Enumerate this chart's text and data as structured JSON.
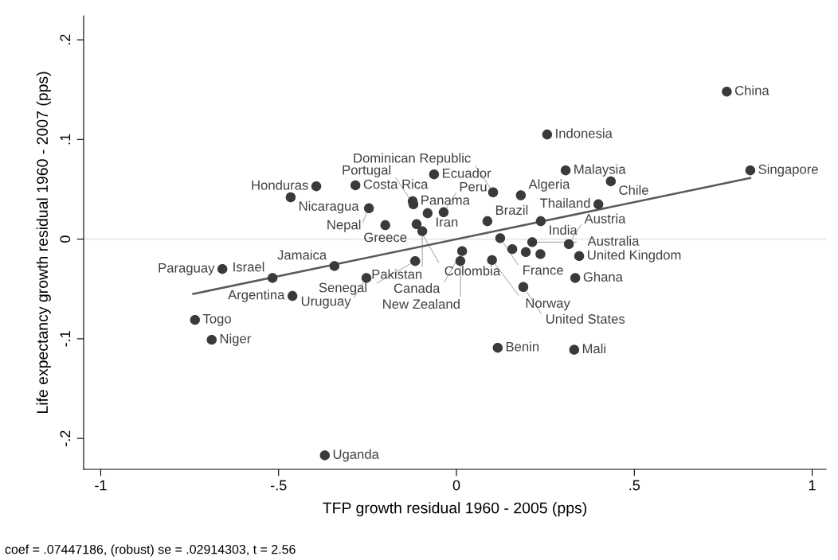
{
  "chart_data": {
    "type": "scatter",
    "xlabel": "TFP growth residual 1960 - 2005 (pps)",
    "ylabel": "Life expectancy growth residual 1960 - 2007 (pps)",
    "xlim": [
      -1.048,
      1.039
    ],
    "ylim": [
      -0.231,
      0.224
    ],
    "xticks": [
      {
        "value": -1,
        "label": "-1"
      },
      {
        "value": -0.5,
        "label": "-.5"
      },
      {
        "value": 0,
        "label": "0"
      },
      {
        "value": 0.5,
        "label": ".5"
      },
      {
        "value": 1,
        "label": "1"
      }
    ],
    "yticks": [
      {
        "value": -0.2,
        "label": "-.2"
      },
      {
        "value": -0.1,
        "label": "-.1"
      },
      {
        "value": 0,
        "label": "0"
      },
      {
        "value": 0.1,
        "label": ".1"
      },
      {
        "value": 0.2,
        "label": ".2"
      }
    ],
    "marker": "circle",
    "ref_lines": [
      {
        "axis": "y",
        "value": 0,
        "color": "#e6e6e6"
      }
    ],
    "series": [
      {
        "color": "#3a3a3a",
        "x": [
          0.76,
          0.826,
          0.255,
          0.307,
          0.434,
          0.399,
          0.103,
          0.181,
          0.237,
          0.087,
          -0.063,
          -0.284,
          -0.394,
          -0.466,
          -0.246,
          -0.123,
          -0.121,
          -0.081,
          -0.036,
          -0.2,
          -0.112,
          -0.096,
          0.123,
          0.213,
          0.316,
          0.016,
          0.1,
          0.157,
          0.195,
          0.236,
          0.345,
          0.011,
          -0.116,
          0.188,
          0.334,
          0.116,
          0.331,
          -0.37,
          -0.735,
          -0.688,
          -0.658,
          -0.517,
          -0.461,
          -0.343,
          -0.253
        ],
        "values": [
          0.148,
          0.069,
          0.105,
          0.069,
          0.058,
          0.035,
          0.047,
          0.044,
          0.018,
          0.018,
          0.065,
          0.054,
          0.053,
          0.042,
          0.031,
          0.038,
          0.035,
          0.026,
          0.027,
          0.014,
          0.015,
          0.008,
          0.001,
          -0.003,
          -0.005,
          -0.012,
          -0.021,
          -0.01,
          -0.013,
          -0.015,
          -0.017,
          -0.022,
          -0.022,
          -0.048,
          -0.039,
          -0.109,
          -0.111,
          -0.217,
          -0.081,
          -0.101,
          -0.03,
          -0.039,
          -0.057,
          -0.027,
          -0.039
        ]
      },
      {
        "type": "line",
        "marker": "none",
        "color": "#5a5a5a",
        "x": [
          -0.74,
          0.826
        ],
        "values": [
          -0.055,
          0.0613
        ]
      }
    ],
    "annotations": [
      {
        "text": "China",
        "x": 0.76,
        "y": 0.148
      },
      {
        "text": "Singapore",
        "x": 0.826,
        "y": 0.069
      },
      {
        "text": "Indonesia",
        "x": 0.255,
        "y": 0.105
      },
      {
        "text": "Malaysia",
        "x": 0.307,
        "y": 0.069
      },
      {
        "text": "Chile",
        "x": 0.434,
        "y": 0.058
      },
      {
        "text": "Thailand",
        "x": 0.399,
        "y": 0.035
      },
      {
        "text": "Dominican Republic",
        "x": 0.103,
        "y": 0.047
      },
      {
        "text": "Algeria",
        "x": 0.181,
        "y": 0.044
      },
      {
        "text": "India",
        "x": 0.237,
        "y": 0.018
      },
      {
        "text": "Brazil",
        "x": 0.087,
        "y": 0.018
      },
      {
        "text": "Ecuador",
        "x": -0.063,
        "y": 0.065
      },
      {
        "text": "Costa Rica",
        "x": -0.284,
        "y": 0.054
      },
      {
        "text": "Honduras",
        "x": -0.394,
        "y": 0.053
      },
      {
        "text": "Nicaragua",
        "x": -0.466,
        "y": 0.042
      },
      {
        "text": "Nepal",
        "x": -0.246,
        "y": 0.031
      },
      {
        "text": "Panama",
        "x": -0.123,
        "y": 0.038
      },
      {
        "text": "Portugal",
        "x": -0.121,
        "y": 0.035
      },
      {
        "text": "Iran",
        "x": -0.081,
        "y": 0.026
      },
      {
        "text": "Peru",
        "x": -0.036,
        "y": 0.027
      },
      {
        "text": "Greece",
        "x": -0.2,
        "y": 0.014
      },
      {
        "text": "Colombia",
        "x": -0.112,
        "y": 0.015
      },
      {
        "text": "Pakistan",
        "x": -0.096,
        "y": 0.008
      },
      {
        "text": "France",
        "x": 0.123,
        "y": 0.001
      },
      {
        "text": "Australia",
        "x": 0.213,
        "y": -0.003
      },
      {
        "text": "Austria",
        "x": 0.316,
        "y": -0.005
      },
      {
        "text": "Canada",
        "x": 0.016,
        "y": -0.012
      },
      {
        "text": "Norway",
        "x": 0.1,
        "y": -0.021
      },
      {
        "text": "United Kingdom",
        "x": 0.345,
        "y": -0.017
      },
      {
        "text": "New Zealand",
        "x": 0.011,
        "y": -0.022
      },
      {
        "text": "Senegal",
        "x": -0.116,
        "y": -0.022
      },
      {
        "text": "United States",
        "x": 0.188,
        "y": -0.048
      },
      {
        "text": "Ghana",
        "x": 0.334,
        "y": -0.039
      },
      {
        "text": "Benin",
        "x": 0.116,
        "y": -0.109
      },
      {
        "text": "Mali",
        "x": 0.331,
        "y": -0.111
      },
      {
        "text": "Uganda",
        "x": -0.37,
        "y": -0.217
      },
      {
        "text": "Togo",
        "x": -0.735,
        "y": -0.081
      },
      {
        "text": "Niger",
        "x": -0.688,
        "y": -0.101
      },
      {
        "text": "Paraguay",
        "x": -0.658,
        "y": -0.03
      },
      {
        "text": "Israel",
        "x": -0.517,
        "y": -0.039
      },
      {
        "text": "Argentina",
        "x": -0.461,
        "y": -0.057
      },
      {
        "text": "Jamaica",
        "x": -0.343,
        "y": -0.027
      },
      {
        "text": "Uruguay",
        "x": -0.253,
        "y": -0.039
      },
      "coef = .07447186, (robust) se = .02914303, t = 2.56"
    ]
  }
}
